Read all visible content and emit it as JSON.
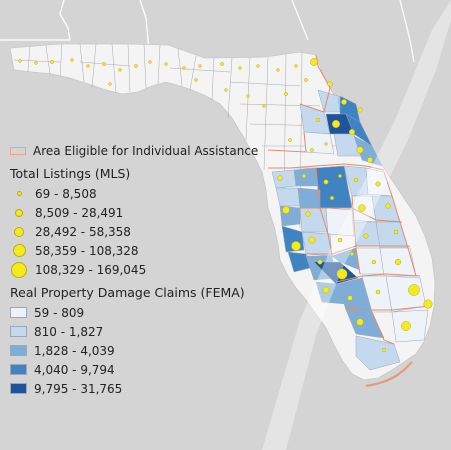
{
  "legend": {
    "ia_label": "Area Eligible for Individual Assistance",
    "listings_title": "Total Listings (MLS)",
    "listings": [
      {
        "label": "69 - 8,508",
        "dot": 1
      },
      {
        "label": "8,509 - 28,491",
        "dot": 2
      },
      {
        "label": "28,492 - 58,358",
        "dot": 3
      },
      {
        "label": "58,359 - 108,328",
        "dot": 4
      },
      {
        "label": "108,329 - 169,045",
        "dot": 5
      }
    ],
    "claims_title": "Real Property Damage Claims (FEMA)",
    "claims": [
      {
        "label": "59 - 809",
        "color": "#eef3fa"
      },
      {
        "label": "810 - 1,827",
        "color": "#c4d8ee"
      },
      {
        "label": "1,828 - 4,039",
        "color": "#7eaed8"
      },
      {
        "label": "4,040 - 9,794",
        "color": "#3f83c2"
      },
      {
        "label": "9,795 - 31,765",
        "color": "#1d549b"
      }
    ]
  },
  "colors": {
    "background": "#d4d4d4",
    "land": "#f4f4f4",
    "county_line": "#9a9a9a",
    "ia_outline": "#e38b6c",
    "dot_fill": "#f4ea1e",
    "hurricane_track": "#ffffff"
  }
}
